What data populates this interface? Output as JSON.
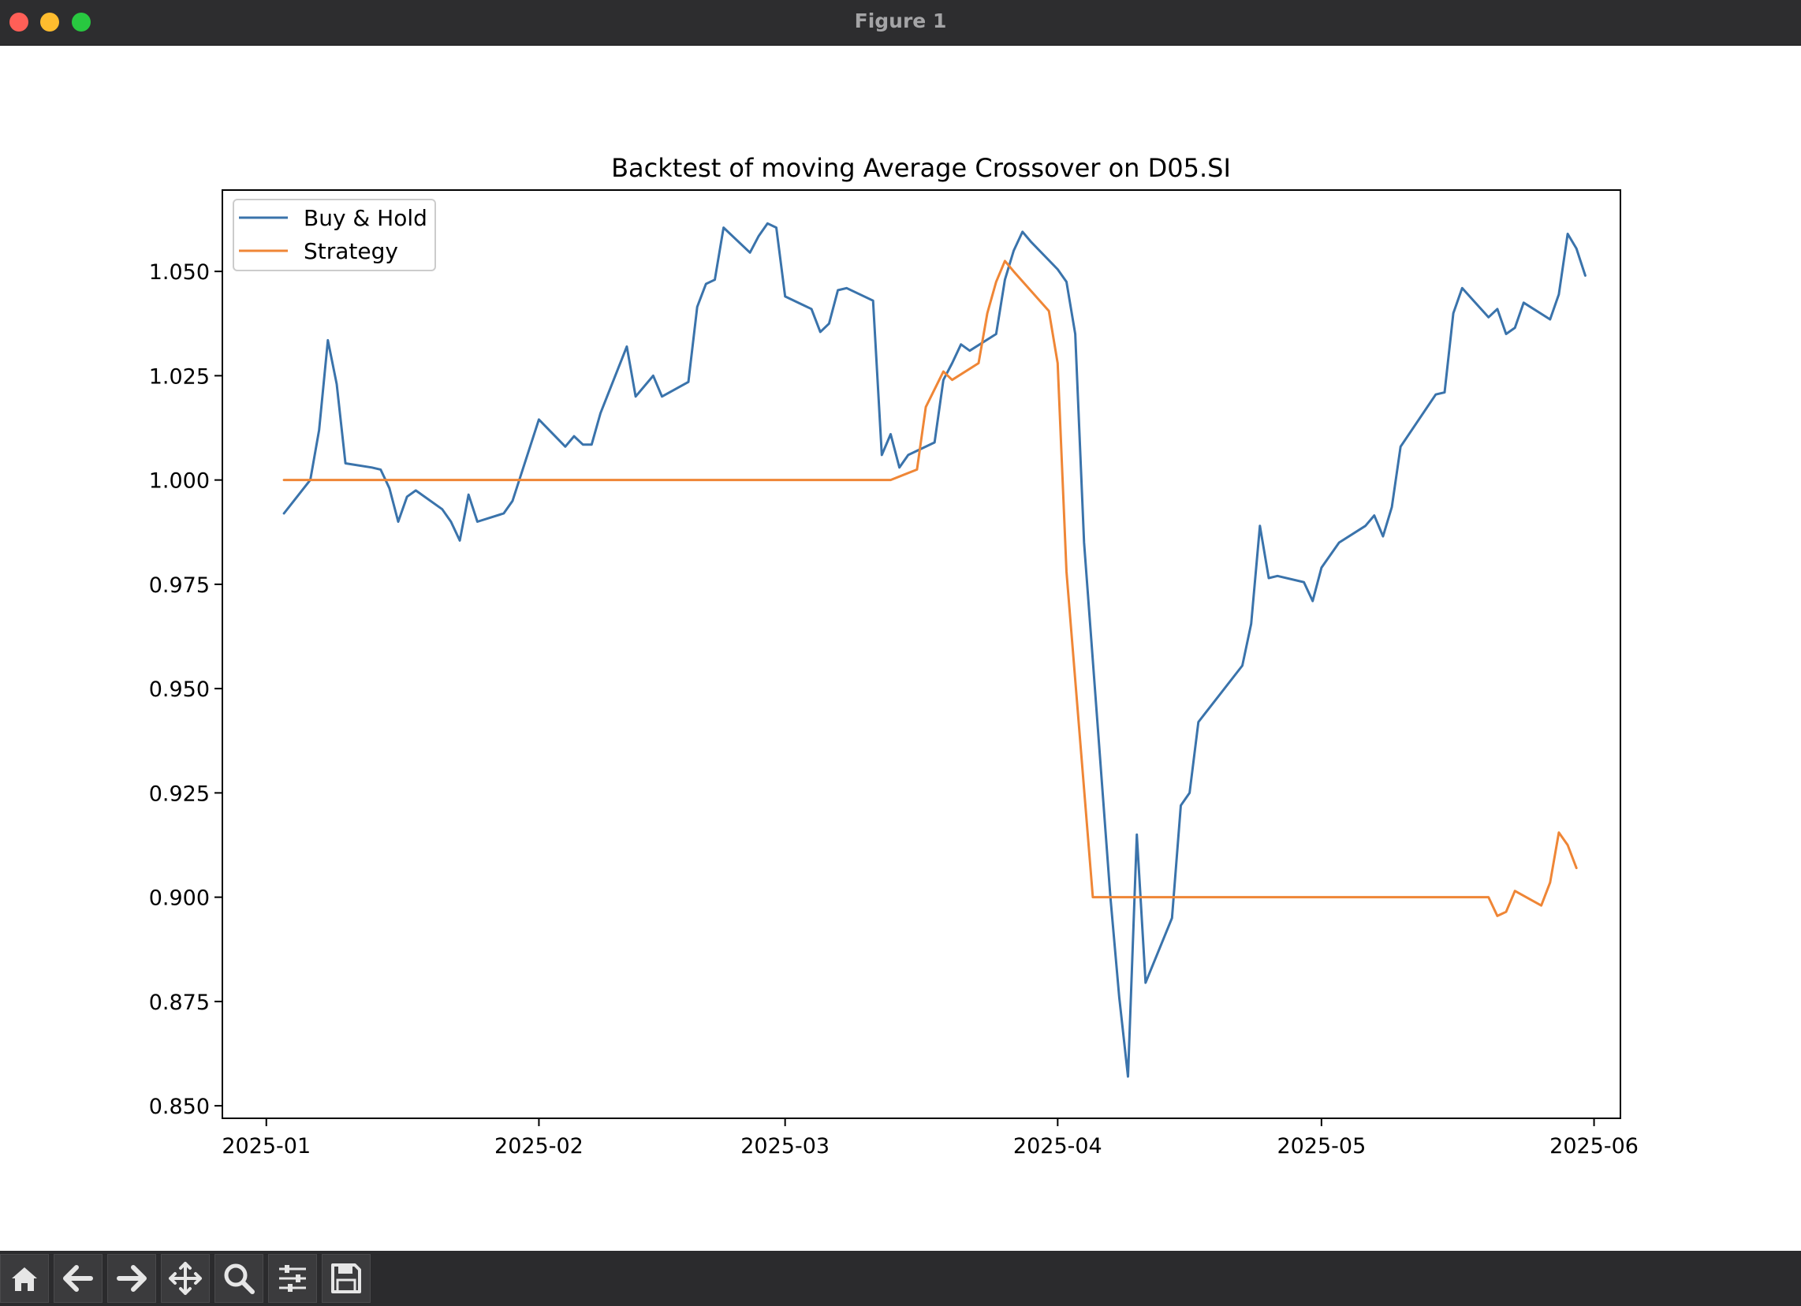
{
  "window": {
    "title": "Figure 1"
  },
  "toolbar": {
    "buttons": [
      {
        "name": "home-icon"
      },
      {
        "name": "back-arrow-icon"
      },
      {
        "name": "forward-arrow-icon"
      },
      {
        "name": "pan-icon"
      },
      {
        "name": "zoom-icon"
      },
      {
        "name": "configure-subplots-icon"
      },
      {
        "name": "save-icon"
      }
    ]
  },
  "chart_data": {
    "type": "line",
    "title": "Backtest of moving Average Crossover on D05.SI",
    "xlabel": "",
    "ylabel": "",
    "xlim": [
      "2024-12-27",
      "2025-06-04"
    ],
    "ylim": [
      0.847,
      1.0695
    ],
    "x_ticks": [
      "2025-01",
      "2025-02",
      "2025-03",
      "2025-04",
      "2025-05",
      "2025-06"
    ],
    "y_ticks": [
      "0.850",
      "0.875",
      "0.900",
      "0.925",
      "0.950",
      "0.975",
      "1.000",
      "1.025",
      "1.050"
    ],
    "legend_position": "top-left",
    "grid": false,
    "series": [
      {
        "name": "Buy & Hold",
        "color": "#3a73ab",
        "points": [
          [
            "2025-01-03",
            0.992
          ],
          [
            "2025-01-06",
            1.0
          ],
          [
            "2025-01-07",
            1.012
          ],
          [
            "2025-01-08",
            1.0335
          ],
          [
            "2025-01-09",
            1.023
          ],
          [
            "2025-01-10",
            1.004
          ],
          [
            "2025-01-13",
            1.003
          ],
          [
            "2025-01-14",
            1.0025
          ],
          [
            "2025-01-15",
            0.998
          ],
          [
            "2025-01-16",
            0.99
          ],
          [
            "2025-01-17",
            0.996
          ],
          [
            "2025-01-18",
            0.9975
          ],
          [
            "2025-01-21",
            0.993
          ],
          [
            "2025-01-22",
            0.99
          ],
          [
            "2025-01-23",
            0.9855
          ],
          [
            "2025-01-24",
            0.9965
          ],
          [
            "2025-01-25",
            0.99
          ],
          [
            "2025-01-28",
            0.992
          ],
          [
            "2025-01-29",
            0.995
          ],
          [
            "2025-02-01",
            1.0145
          ],
          [
            "2025-02-04",
            1.008
          ],
          [
            "2025-02-05",
            1.0105
          ],
          [
            "2025-02-06",
            1.0085
          ],
          [
            "2025-02-07",
            1.0085
          ],
          [
            "2025-02-08",
            1.016
          ],
          [
            "2025-02-11",
            1.032
          ],
          [
            "2025-02-12",
            1.02
          ],
          [
            "2025-02-14",
            1.025
          ],
          [
            "2025-02-15",
            1.02
          ],
          [
            "2025-02-18",
            1.0235
          ],
          [
            "2025-02-19",
            1.0415
          ],
          [
            "2025-02-20",
            1.047
          ],
          [
            "2025-02-21",
            1.048
          ],
          [
            "2025-02-22",
            1.0605
          ],
          [
            "2025-02-25",
            1.0545
          ],
          [
            "2025-02-26",
            1.0585
          ],
          [
            "2025-02-27",
            1.0615
          ],
          [
            "2025-02-28",
            1.0605
          ],
          [
            "2025-03-01",
            1.044
          ],
          [
            "2025-03-04",
            1.041
          ],
          [
            "2025-03-05",
            1.0355
          ],
          [
            "2025-03-06",
            1.0375
          ],
          [
            "2025-03-07",
            1.0455
          ],
          [
            "2025-03-08",
            1.046
          ],
          [
            "2025-03-11",
            1.043
          ],
          [
            "2025-03-12",
            1.006
          ],
          [
            "2025-03-13",
            1.011
          ],
          [
            "2025-03-14",
            1.003
          ],
          [
            "2025-03-15",
            1.006
          ],
          [
            "2025-03-18",
            1.009
          ],
          [
            "2025-03-19",
            1.024
          ],
          [
            "2025-03-20",
            1.028
          ],
          [
            "2025-03-21",
            1.0325
          ],
          [
            "2025-03-22",
            1.031
          ],
          [
            "2025-03-25",
            1.035
          ],
          [
            "2025-03-26",
            1.048
          ],
          [
            "2025-03-27",
            1.055
          ],
          [
            "2025-03-28",
            1.0595
          ],
          [
            "2025-03-29",
            1.057
          ],
          [
            "2025-04-01",
            1.0505
          ],
          [
            "2025-04-02",
            1.0475
          ],
          [
            "2025-04-03",
            1.035
          ],
          [
            "2025-04-04",
            0.985
          ],
          [
            "2025-04-07",
            0.9
          ],
          [
            "2025-04-08",
            0.876
          ],
          [
            "2025-04-09",
            0.857
          ],
          [
            "2025-04-10",
            0.915
          ],
          [
            "2025-04-11",
            0.8795
          ],
          [
            "2025-04-14",
            0.895
          ],
          [
            "2025-04-15",
            0.922
          ],
          [
            "2025-04-16",
            0.925
          ],
          [
            "2025-04-17",
            0.942
          ],
          [
            "2025-04-22",
            0.9555
          ],
          [
            "2025-04-23",
            0.9655
          ],
          [
            "2025-04-24",
            0.989
          ],
          [
            "2025-04-25",
            0.9765
          ],
          [
            "2025-04-26",
            0.977
          ],
          [
            "2025-04-29",
            0.9755
          ],
          [
            "2025-04-30",
            0.971
          ],
          [
            "2025-05-01",
            0.979
          ],
          [
            "2025-05-03",
            0.985
          ],
          [
            "2025-05-06",
            0.989
          ],
          [
            "2025-05-07",
            0.9915
          ],
          [
            "2025-05-08",
            0.9865
          ],
          [
            "2025-05-09",
            0.9935
          ],
          [
            "2025-05-10",
            1.008
          ],
          [
            "2025-05-14",
            1.0205
          ],
          [
            "2025-05-15",
            1.021
          ],
          [
            "2025-05-16",
            1.04
          ],
          [
            "2025-05-17",
            1.046
          ],
          [
            "2025-05-20",
            1.039
          ],
          [
            "2025-05-21",
            1.041
          ],
          [
            "2025-05-22",
            1.035
          ],
          [
            "2025-05-23",
            1.0365
          ],
          [
            "2025-05-24",
            1.0425
          ],
          [
            "2025-05-27",
            1.0385
          ],
          [
            "2025-05-28",
            1.0445
          ],
          [
            "2025-05-29",
            1.059
          ],
          [
            "2025-05-30",
            1.0555
          ],
          [
            "2025-05-31",
            1.049
          ]
        ]
      },
      {
        "name": "Strategy",
        "color": "#ef8636",
        "points": [
          [
            "2025-01-03",
            1.0
          ],
          [
            "2025-03-13",
            1.0
          ],
          [
            "2025-03-16",
            1.0025
          ],
          [
            "2025-03-17",
            1.0175
          ],
          [
            "2025-03-19",
            1.026
          ],
          [
            "2025-03-20",
            1.024
          ],
          [
            "2025-03-23",
            1.028
          ],
          [
            "2025-03-24",
            1.04
          ],
          [
            "2025-03-25",
            1.0475
          ],
          [
            "2025-03-26",
            1.0525
          ],
          [
            "2025-03-27",
            1.05
          ],
          [
            "2025-03-31",
            1.0405
          ],
          [
            "2025-04-01",
            1.028
          ],
          [
            "2025-04-02",
            0.978
          ],
          [
            "2025-04-05",
            0.9
          ],
          [
            "2025-05-20",
            0.9
          ],
          [
            "2025-05-21",
            0.8955
          ],
          [
            "2025-05-22",
            0.8965
          ],
          [
            "2025-05-23",
            0.9015
          ],
          [
            "2025-05-26",
            0.898
          ],
          [
            "2025-05-27",
            0.9035
          ],
          [
            "2025-05-28",
            0.9155
          ],
          [
            "2025-05-29",
            0.9125
          ],
          [
            "2025-05-30",
            0.907
          ]
        ]
      }
    ]
  }
}
